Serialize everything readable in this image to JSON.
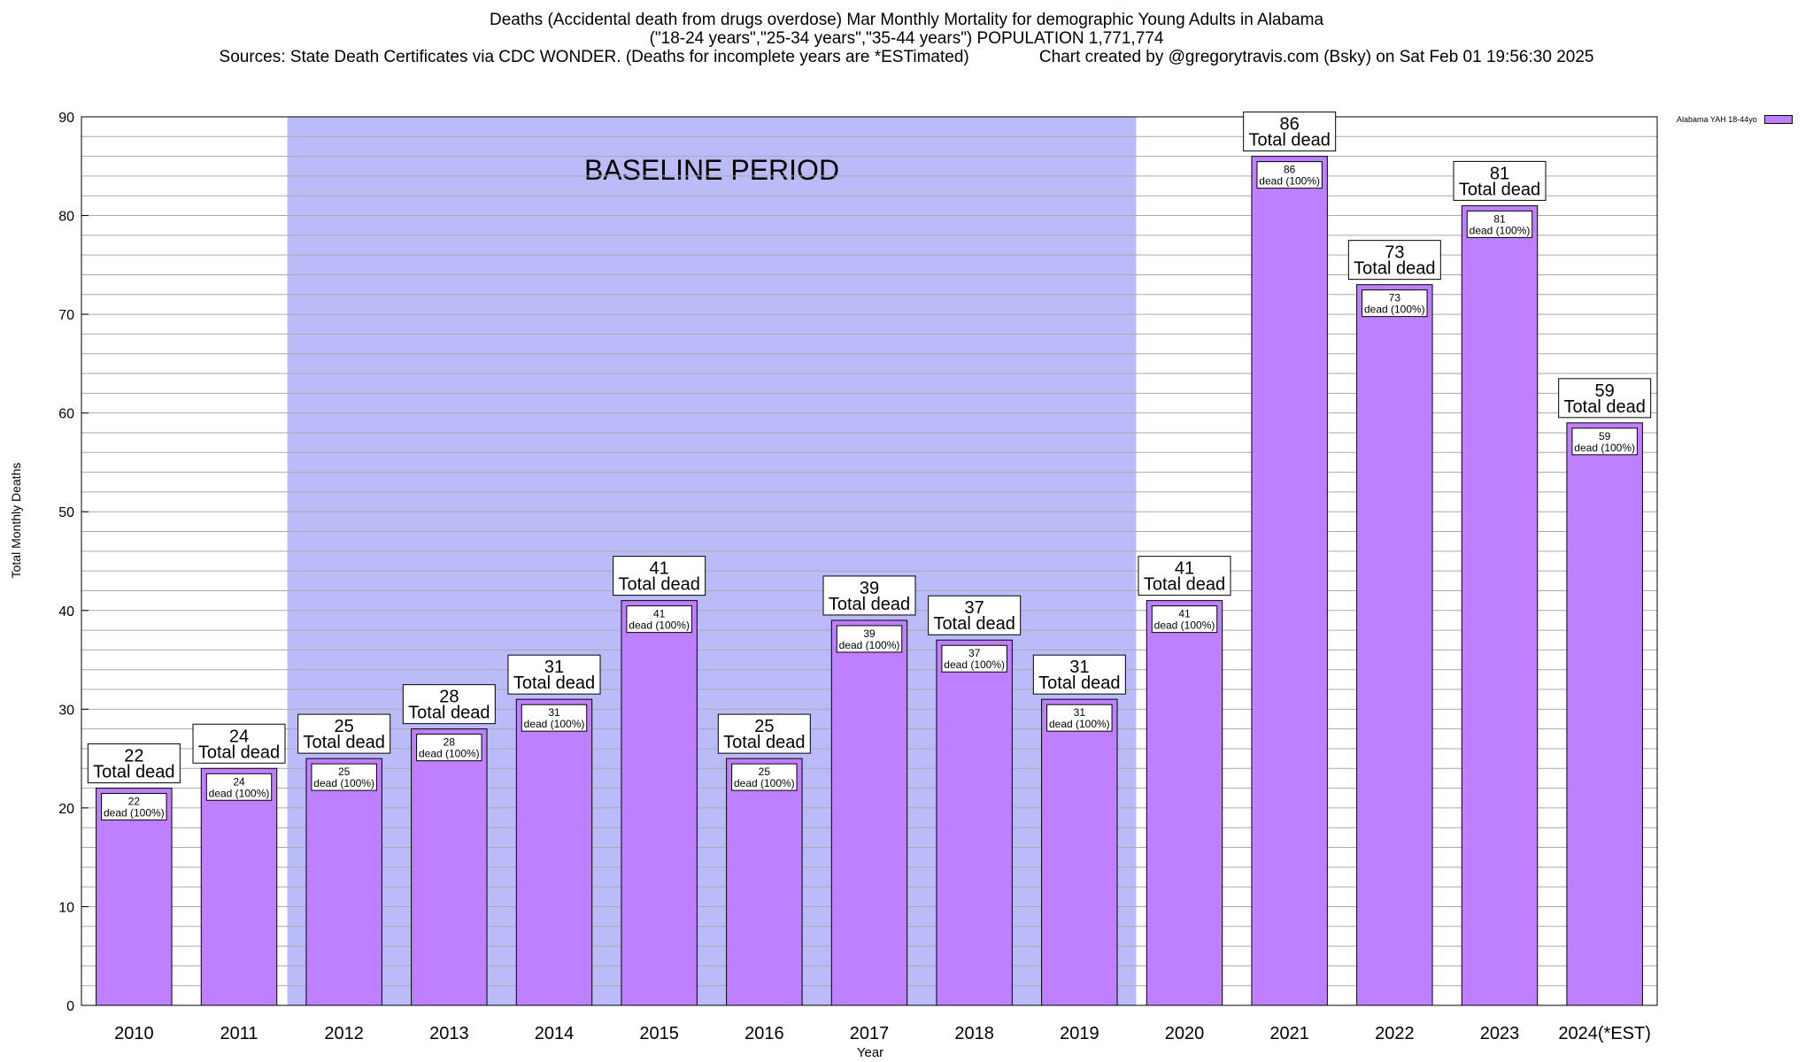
{
  "header": {
    "line1": "Deaths (Accidental death from drugs overdose) Mar Monthly Mortality for demographic Young Adults in Alabama",
    "line2": "(\"18-24 years\",\"25-34 years\",\"35-44 years\") POPULATION 1,771,774",
    "line3": "Sources: State Death Certificates via CDC WONDER. (Deaths for incomplete years are *ESTimated)               Chart created by @gregorytravis.com (Bsky) on Sat Feb 01 19:56:30 2025"
  },
  "colors": {
    "bar": "#bf80ff",
    "baseline_shade": "#bbbbfa",
    "grid": "#aaaaaa"
  },
  "chart_data": {
    "type": "bar",
    "title": "Deaths (Accidental death from drugs overdose) Mar Monthly Mortality for demographic Young Adults in Alabama",
    "xlabel": "Year",
    "ylabel": "Total Monthly Deaths",
    "ylim": [
      0,
      90
    ],
    "yticks": [
      0,
      10,
      20,
      30,
      40,
      50,
      60,
      70,
      80,
      90
    ],
    "grid": true,
    "legend_position": "top-right",
    "categories": [
      "2010",
      "2011",
      "2012",
      "2013",
      "2014",
      "2015",
      "2016",
      "2017",
      "2018",
      "2019",
      "2020",
      "2021",
      "2022",
      "2023",
      "2024(*EST)"
    ],
    "series": [
      {
        "name": "Alabama YAH 18-44yo",
        "values": [
          22,
          24,
          25,
          28,
          31,
          41,
          25,
          39,
          37,
          31,
          41,
          86,
          73,
          81,
          59
        ]
      }
    ],
    "top_label_suffix": "Total dead",
    "inner_label_suffix": "dead (100%)",
    "annotation": {
      "text": "BASELINE PERIOD",
      "from_category": "2012",
      "to_category": "2019"
    }
  }
}
